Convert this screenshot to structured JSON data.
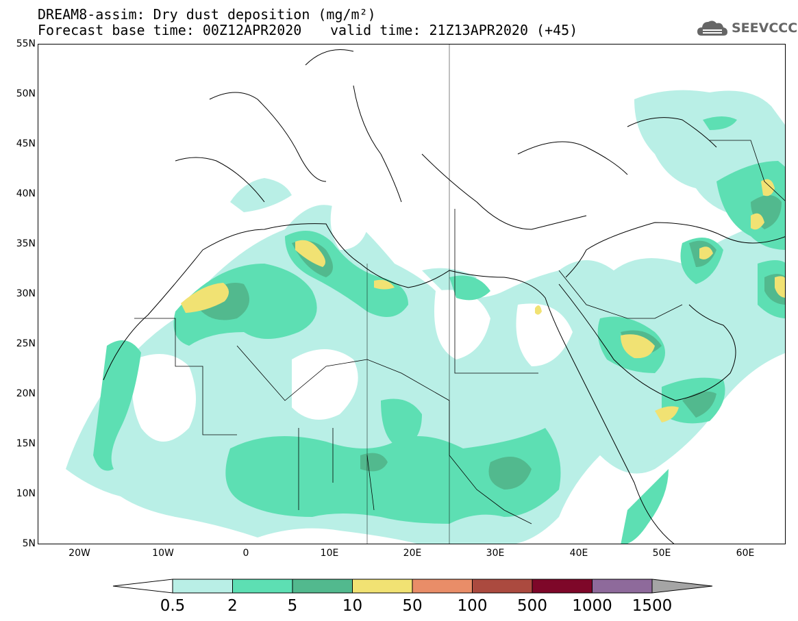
{
  "title": {
    "line1": "DREAM8-assim: Dry dust deposition (mg/m²)",
    "base_time": "Forecast base time: 00Z12APR2020",
    "valid_time": "valid time: 21Z13APR2020 (+45)"
  },
  "logo": {
    "text": "SEEVCCC",
    "icon": "cloud-icon"
  },
  "axes": {
    "lat_labels": [
      "55N",
      "50N",
      "45N",
      "40N",
      "35N",
      "30N",
      "25N",
      "20N",
      "15N",
      "10N",
      "5N"
    ],
    "lon_labels": [
      "20W",
      "10W",
      "0",
      "10E",
      "20E",
      "30E",
      "40E",
      "50E",
      "60E"
    ],
    "lat_range": [
      5,
      55
    ],
    "lon_range": [
      -25,
      65
    ]
  },
  "legend": {
    "labels": [
      "0.5",
      "2",
      "5",
      "10",
      "50",
      "100",
      "500",
      "1000",
      "1500"
    ],
    "colors": [
      "#b9efe6",
      "#5ddfb3",
      "#52b98e",
      "#f1e273",
      "#e98d68",
      "#ab4a3f",
      "#7e0729",
      "#8e6a9b",
      "#a5a5a5"
    ]
  },
  "colors": {
    "level1": "#b9efe6",
    "level2": "#5ddfb3",
    "level3": "#52b98e",
    "level4": "#f1e273"
  }
}
